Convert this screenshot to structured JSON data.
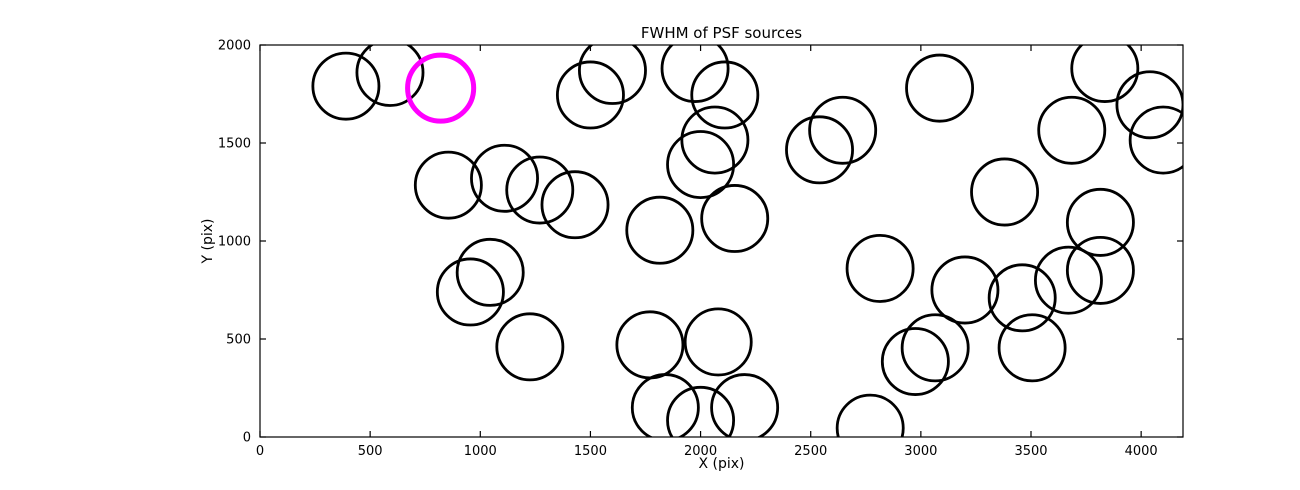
{
  "chart_data": {
    "type": "scatter",
    "title": "FWHM of PSF sources",
    "xlabel": "X (pix)",
    "ylabel": "Y (pix)",
    "xlim": [
      0,
      4190
    ],
    "ylim": [
      0,
      2000
    ],
    "x_ticks": [
      0,
      500,
      1000,
      1500,
      2000,
      2500,
      3000,
      3500,
      4000
    ],
    "y_ticks": [
      0,
      500,
      1000,
      1500,
      2000
    ],
    "marker": "circle-outline",
    "circle_radius_data": 150,
    "grid": false,
    "legend": "none",
    "colors": {
      "default": "#000000",
      "highlight": "#ff00ff",
      "frame": "#000000",
      "background": "#ffffff"
    },
    "points": [
      {
        "x": 390,
        "y": 1790,
        "c": "default"
      },
      {
        "x": 590,
        "y": 1860,
        "c": "default"
      },
      {
        "x": 1500,
        "y": 1745,
        "c": "default"
      },
      {
        "x": 1600,
        "y": 1870,
        "c": "default"
      },
      {
        "x": 1975,
        "y": 1880,
        "c": "default"
      },
      {
        "x": 2110,
        "y": 1745,
        "c": "default"
      },
      {
        "x": 2065,
        "y": 1515,
        "c": "default"
      },
      {
        "x": 2540,
        "y": 1465,
        "c": "default"
      },
      {
        "x": 2645,
        "y": 1565,
        "c": "default"
      },
      {
        "x": 3085,
        "y": 1780,
        "c": "default"
      },
      {
        "x": 3685,
        "y": 1565,
        "c": "default"
      },
      {
        "x": 3835,
        "y": 1880,
        "c": "default"
      },
      {
        "x": 4040,
        "y": 1695,
        "c": "default"
      },
      {
        "x": 4100,
        "y": 1515,
        "c": "default"
      },
      {
        "x": 855,
        "y": 1285,
        "c": "default"
      },
      {
        "x": 1110,
        "y": 1320,
        "c": "default"
      },
      {
        "x": 1270,
        "y": 1260,
        "c": "default"
      },
      {
        "x": 1430,
        "y": 1185,
        "c": "default"
      },
      {
        "x": 2000,
        "y": 1390,
        "c": "default"
      },
      {
        "x": 1815,
        "y": 1055,
        "c": "default"
      },
      {
        "x": 2155,
        "y": 1115,
        "c": "default"
      },
      {
        "x": 2815,
        "y": 860,
        "c": "default"
      },
      {
        "x": 3380,
        "y": 1250,
        "c": "default"
      },
      {
        "x": 3815,
        "y": 1095,
        "c": "default"
      },
      {
        "x": 3200,
        "y": 750,
        "c": "default"
      },
      {
        "x": 3460,
        "y": 710,
        "c": "default"
      },
      {
        "x": 3670,
        "y": 800,
        "c": "default"
      },
      {
        "x": 3815,
        "y": 850,
        "c": "default"
      },
      {
        "x": 955,
        "y": 740,
        "c": "default"
      },
      {
        "x": 1045,
        "y": 840,
        "c": "default"
      },
      {
        "x": 1225,
        "y": 460,
        "c": "default"
      },
      {
        "x": 1770,
        "y": 470,
        "c": "default"
      },
      {
        "x": 2080,
        "y": 485,
        "c": "default"
      },
      {
        "x": 1840,
        "y": 150,
        "c": "default"
      },
      {
        "x": 2000,
        "y": 85,
        "c": "default"
      },
      {
        "x": 2200,
        "y": 150,
        "c": "default"
      },
      {
        "x": 2770,
        "y": 45,
        "c": "default"
      },
      {
        "x": 2975,
        "y": 385,
        "c": "default"
      },
      {
        "x": 3065,
        "y": 455,
        "c": "default"
      },
      {
        "x": 3505,
        "y": 455,
        "c": "default"
      },
      {
        "x": 820,
        "y": 1780,
        "c": "highlight"
      }
    ]
  }
}
